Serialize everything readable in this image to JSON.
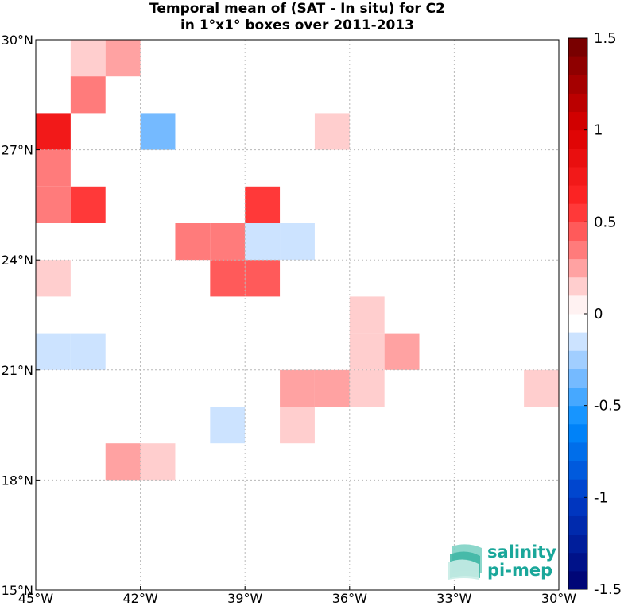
{
  "chart_data": {
    "type": "heatmap",
    "title": "Temporal mean of (SAT - In situ) for C2",
    "subtitle": "in 1°x1° boxes over 2011-2013",
    "xlabel": "",
    "ylabel": "",
    "xlim": [
      -45,
      -30
    ],
    "ylim": [
      15,
      30
    ],
    "grid": true,
    "x_ticks": [
      {
        "value": -45,
        "label": "45°W"
      },
      {
        "value": -42,
        "label": "42°W"
      },
      {
        "value": -39,
        "label": "39°W"
      },
      {
        "value": -36,
        "label": "36°W"
      },
      {
        "value": -33,
        "label": "33°W"
      },
      {
        "value": -30,
        "label": "30°W"
      }
    ],
    "y_ticks": [
      {
        "value": 15,
        "label": "15°N"
      },
      {
        "value": 18,
        "label": "18°N"
      },
      {
        "value": 21,
        "label": "21°N"
      },
      {
        "value": 24,
        "label": "24°N"
      },
      {
        "value": 27,
        "label": "27°N"
      },
      {
        "value": 30,
        "label": "30°N"
      }
    ],
    "colorbar": {
      "min": -1.5,
      "max": 1.5,
      "step": 0.1,
      "ticks": [
        {
          "value": 1.5,
          "label": "1.5"
        },
        {
          "value": 1,
          "label": "1"
        },
        {
          "value": 0.5,
          "label": "0.5"
        },
        {
          "value": 0,
          "label": "0"
        },
        {
          "value": -0.5,
          "label": "-0.5"
        },
        {
          "value": -1,
          "label": "-1"
        },
        {
          "value": -1.5,
          "label": "-1.5"
        }
      ],
      "colormap": "blue-white-red"
    },
    "cells": [
      {
        "lon": -44,
        "lat": 29,
        "value": 0.15
      },
      {
        "lon": -43,
        "lat": 29,
        "value": 0.25
      },
      {
        "lon": -44,
        "lat": 28,
        "value": 0.35
      },
      {
        "lon": -45,
        "lat": 27,
        "value": 0.75
      },
      {
        "lon": -42,
        "lat": 27,
        "value": -0.35
      },
      {
        "lon": -37,
        "lat": 27,
        "value": 0.15
      },
      {
        "lon": -45,
        "lat": 26,
        "value": 0.35
      },
      {
        "lon": -45,
        "lat": 25,
        "value": 0.35
      },
      {
        "lon": -44,
        "lat": 25,
        "value": 0.55
      },
      {
        "lon": -39,
        "lat": 25,
        "value": 0.55
      },
      {
        "lon": -41,
        "lat": 24,
        "value": 0.35
      },
      {
        "lon": -40,
        "lat": 24,
        "value": 0.35
      },
      {
        "lon": -39,
        "lat": 24,
        "value": -0.15
      },
      {
        "lon": -38,
        "lat": 24,
        "value": -0.15
      },
      {
        "lon": -45,
        "lat": 23,
        "value": 0.15
      },
      {
        "lon": -40,
        "lat": 23,
        "value": 0.45
      },
      {
        "lon": -39,
        "lat": 23,
        "value": 0.45
      },
      {
        "lon": -36,
        "lat": 22,
        "value": 0.15
      },
      {
        "lon": -45,
        "lat": 21,
        "value": -0.15
      },
      {
        "lon": -44,
        "lat": 21,
        "value": -0.15
      },
      {
        "lon": -36,
        "lat": 21,
        "value": 0.15
      },
      {
        "lon": -35,
        "lat": 21,
        "value": 0.25
      },
      {
        "lon": -38,
        "lat": 20,
        "value": 0.25
      },
      {
        "lon": -37,
        "lat": 20,
        "value": 0.25
      },
      {
        "lon": -36,
        "lat": 20,
        "value": 0.15
      },
      {
        "lon": -31,
        "lat": 20,
        "value": 0.15
      },
      {
        "lon": -40,
        "lat": 19,
        "value": -0.15
      },
      {
        "lon": -38,
        "lat": 19,
        "value": 0.15
      },
      {
        "lon": -43,
        "lat": 18,
        "value": 0.25
      },
      {
        "lon": -42,
        "lat": 18,
        "value": 0.15
      }
    ]
  },
  "logo": {
    "line1": "salinity",
    "line2": "pi-mep"
  },
  "colors": {
    "logo_accent": "#1aa79a",
    "grid": "#b8b8b8"
  }
}
